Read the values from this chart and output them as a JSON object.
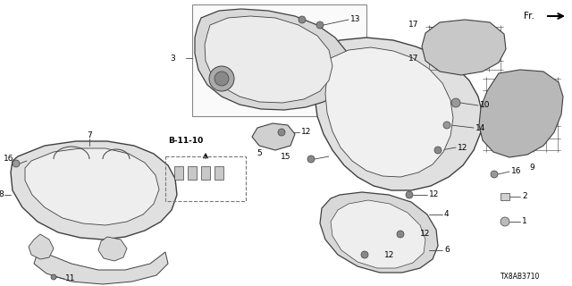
{
  "bg_color": "#ffffff",
  "line_color": "#404040",
  "text_color": "#000000",
  "fig_width": 6.4,
  "fig_height": 3.2,
  "dpi": 100,
  "diagram_code": "TX8AB3710",
  "font_size": 6.5,
  "bold_font_size": 7.0
}
